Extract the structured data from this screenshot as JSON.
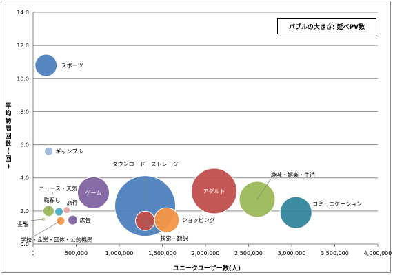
{
  "chart_data": {
    "type": "bubble",
    "legend_note": "バブルの大きさ: 延べPV数",
    "xlabel": "ユニークユーザー数(人)",
    "ylabel": "平均訪問回数(回)",
    "xlim": [
      0,
      4000000
    ],
    "ylim": [
      0,
      14
    ],
    "x_ticks": [
      "0",
      "500,000",
      "1,000,000",
      "1,500,000",
      "2,000,000",
      "2,500,000",
      "3,000,000",
      "3,500,000",
      "4,000,000"
    ],
    "y_ticks": [
      "0.0",
      "2.0",
      "4.0",
      "6.0",
      "8.0",
      "10.0",
      "12.0",
      "14.0"
    ],
    "grid": "horizontal",
    "points": [
      {
        "label": "スポーツ",
        "x": 150000,
        "y": 10.8,
        "size": 16,
        "color": "#4f81bd"
      },
      {
        "label": "ギャンブル",
        "x": 180000,
        "y": 5.6,
        "size": 6,
        "color": "#9fb6d8"
      },
      {
        "label": "ダウンロード・ストレージ",
        "x": 1300000,
        "y": 2.3,
        "size": 44,
        "color": "#4f81bd"
      },
      {
        "label": "アダルト",
        "x": 2100000,
        "y": 3.2,
        "size": 33,
        "color": "#c0504d"
      },
      {
        "label": "趣味・娯楽・生活",
        "x": 2600000,
        "y": 2.7,
        "size": 26,
        "color": "#9bbb59"
      },
      {
        "label": "コミュニケーション",
        "x": 3050000,
        "y": 1.9,
        "size": 23,
        "color": "#31859c"
      },
      {
        "label": "ゲーム",
        "x": 700000,
        "y": 3.1,
        "size": 23,
        "color": "#8064a2"
      },
      {
        "label": "ショッピング",
        "x": 1550000,
        "y": 1.45,
        "size": 18,
        "color": "#f79646"
      },
      {
        "label": "検索・翻訳",
        "x": 1300000,
        "y": 1.4,
        "size": 14,
        "color": "#c0504d"
      },
      {
        "label": "ニュース・天気",
        "x": 180000,
        "y": 2.0,
        "size": 8,
        "color": "#9bbb59"
      },
      {
        "label": "職探し",
        "x": 300000,
        "y": 1.95,
        "size": 6,
        "color": "#4bacc6"
      },
      {
        "label": "旅行",
        "x": 390000,
        "y": 2.05,
        "size": 5,
        "color": "#e6a9a8"
      },
      {
        "label": "広告",
        "x": 460000,
        "y": 1.45,
        "size": 7,
        "color": "#8064a2"
      },
      {
        "label": "学校・企業・団体・公的機関",
        "x": 320000,
        "y": 1.4,
        "size": 6,
        "color": "#f79646"
      },
      {
        "label": "金融",
        "x": 120000,
        "y": 1.5,
        "size": 3,
        "color": "#c4d79b"
      }
    ]
  }
}
